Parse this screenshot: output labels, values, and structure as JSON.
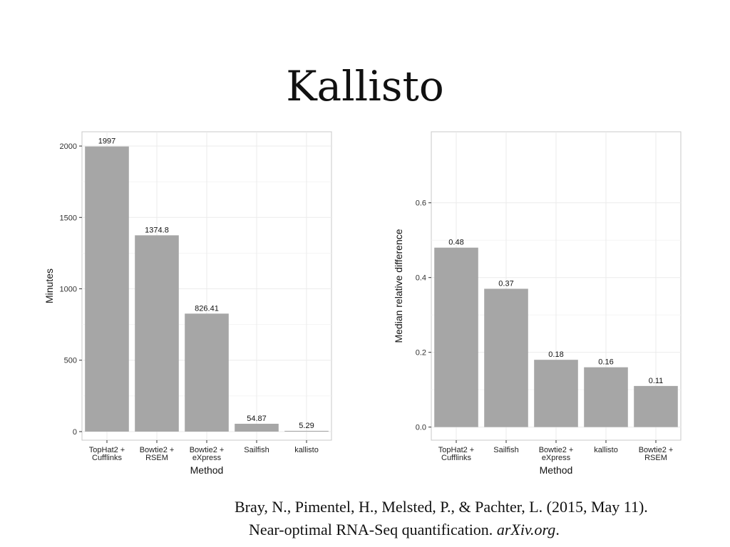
{
  "slide": {
    "title": "Kallisto",
    "citation": {
      "line1": "Bray, N., Pimentel, H., Melsted, P., & Pachter, L. (2015, May 11).",
      "line2_text": "Near-optimal RNA-Seq quantification. ",
      "line2_journal": "arXiv.org",
      "line2_end": "."
    }
  },
  "chart_data": [
    {
      "type": "bar",
      "categories": [
        [
          "TopHat2 +",
          "Cufflinks"
        ],
        [
          "Bowtie2 +",
          "RSEM"
        ],
        [
          "Bowtie2 +",
          "eXpress"
        ],
        [
          "Sailfish"
        ],
        [
          "kallisto"
        ]
      ],
      "values": [
        1997,
        1374.8,
        826.41,
        54.87,
        5.29
      ],
      "value_labels": [
        "1997",
        "1374.8",
        "826.41",
        "54.87",
        "5.29"
      ],
      "xlabel": "Method",
      "ylabel": "Minutes",
      "ylim": [
        -60,
        2100
      ],
      "yticks": [
        0,
        500,
        1000,
        1500,
        2000
      ],
      "ytick_labels": [
        "0",
        "500",
        "1000",
        "1500",
        "2000"
      ],
      "grid": true,
      "bar_color": "#a6a6a6"
    },
    {
      "type": "bar",
      "categories": [
        [
          "TopHat2 +",
          "Cufflinks"
        ],
        [
          "Sailfish"
        ],
        [
          "Bowtie2 +",
          "eXpress"
        ],
        [
          "kallisto"
        ],
        [
          "Bowtie2 +",
          "RSEM"
        ]
      ],
      "values": [
        0.48,
        0.37,
        0.18,
        0.16,
        0.11
      ],
      "value_labels": [
        "0.48",
        "0.37",
        "0.18",
        "0.16",
        "0.11"
      ],
      "xlabel": "Method",
      "ylabel": "Median relative difference",
      "ylim": [
        -0.035,
        0.79
      ],
      "yticks": [
        0.0,
        0.2,
        0.4,
        0.6
      ],
      "ytick_labels": [
        "0.0",
        "0.2",
        "0.4",
        "0.6"
      ],
      "grid": true,
      "bar_color": "#a6a6a6"
    }
  ]
}
